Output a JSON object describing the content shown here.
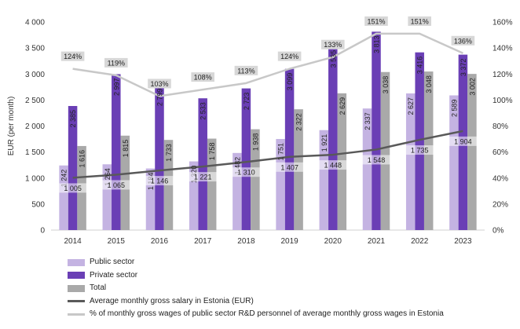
{
  "chart_data": {
    "type": "bar",
    "ylabel": "EUR (per month)",
    "ylim": [
      0,
      4000
    ],
    "yticks": [
      "0",
      "500",
      "1 000",
      "1 500",
      "2 000",
      "2 500",
      "3 000",
      "3 500",
      "4 000"
    ],
    "y2lim": [
      0,
      160
    ],
    "y2ticks": [
      "0%",
      "20%",
      "40%",
      "60%",
      "80%",
      "100%",
      "120%",
      "140%",
      "160%"
    ],
    "categories": [
      "2014",
      "2015",
      "2016",
      "2017",
      "2018",
      "2019",
      "2020",
      "2021",
      "2022",
      "2023"
    ],
    "series": [
      {
        "name": "Public sector",
        "kind": "bar",
        "color": "#c4b3e2",
        "values": [
          1242,
          1264,
          1184,
          1320,
          1482,
          1751,
          1921,
          2337,
          2627,
          2589
        ],
        "labels": [
          "1 242",
          "1 264",
          "1 184",
          "1 320",
          "1 482",
          "1 751",
          "1 921",
          "2 337",
          "2 627",
          "2 589"
        ]
      },
      {
        "name": "Private sector",
        "kind": "bar",
        "color": "#6a3fb5",
        "values": [
          2385,
          2997,
          2799,
          2533,
          2723,
          3099,
          3535,
          3813,
          3416,
          3372
        ],
        "labels": [
          "2 385",
          "2 997",
          "2 799",
          "2 533",
          "2 723",
          "3 099",
          "3 535",
          "3 813",
          "3 416",
          "3 372"
        ]
      },
      {
        "name": "Total",
        "kind": "bar",
        "color": "#a9a9a9",
        "values": [
          1616,
          1815,
          1733,
          1758,
          1938,
          2322,
          2629,
          3038,
          3048,
          3002
        ],
        "labels": [
          "1 616",
          "1 815",
          "1 733",
          "1 758",
          "1 938",
          "2 322",
          "2 629",
          "3 038",
          "3 048",
          "3 002"
        ]
      },
      {
        "name": "Average monthly gross salary in Estonia (EUR)",
        "kind": "line",
        "color": "#595959",
        "values": [
          1005,
          1065,
          1146,
          1221,
          1310,
          1407,
          1448,
          1548,
          1735,
          1904
        ],
        "labels": [
          "1 005",
          "1 065",
          "1 146",
          "1 221",
          "1 310",
          "1 407",
          "1 448",
          "1 548",
          "1 735",
          "1 904"
        ]
      },
      {
        "name": "% of monthly gross wages of public sector R&D personnel of average monthly gross wages in Estonia",
        "kind": "line",
        "axis": "secondary",
        "color": "#c8c8c8",
        "values": [
          124,
          119,
          103,
          108,
          113,
          124,
          133,
          151,
          151,
          136
        ],
        "labels": [
          "124%",
          "119%",
          "103%",
          "108%",
          "113%",
          "124%",
          "133%",
          "151%",
          "151%",
          "136%"
        ]
      }
    ],
    "grid": false,
    "legend": "bottom"
  }
}
